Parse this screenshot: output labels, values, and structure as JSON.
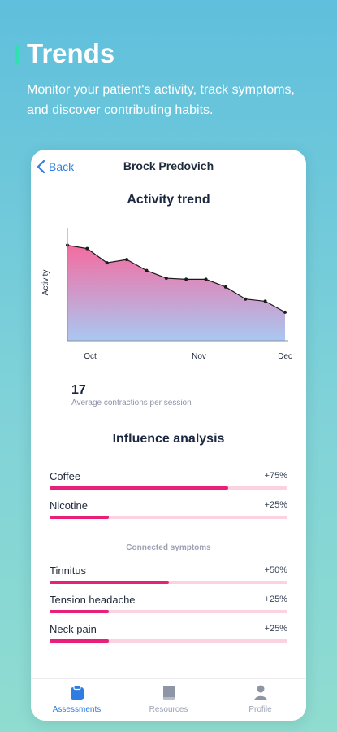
{
  "hero": {
    "title": "Trends",
    "subtitle": "Monitor your patient's activity, track symptoms, and discover contributing habits.",
    "accent_color": "#2fe0b0"
  },
  "header": {
    "back_label": "Back",
    "patient_name": "Brock Predovich"
  },
  "activity": {
    "title": "Activity trend",
    "stat_value": "17",
    "stat_label": "Average contractions per session"
  },
  "chart_data": {
    "type": "area",
    "title": "Activity trend",
    "ylabel": "Activity",
    "xlabel": "",
    "x_tick_labels": [
      "Oct",
      "Nov",
      "Dec"
    ],
    "ylim": [
      0,
      100
    ],
    "grid": false,
    "fill_gradient": [
      "#f56ba0",
      "#a9c8f2"
    ],
    "line_color": "#1b1b1b",
    "series": [
      {
        "values": [
          87,
          84,
          71,
          74,
          64,
          57,
          56,
          56,
          49,
          38,
          36,
          26
        ]
      }
    ]
  },
  "influence": {
    "title": "Influence analysis",
    "habits": [
      {
        "label": "Coffee",
        "value_text": "+75%",
        "fraction": 0.75
      },
      {
        "label": "Nicotine",
        "value_text": "+25%",
        "fraction": 0.25
      }
    ],
    "symptoms_heading": "Connected symptoms",
    "symptoms": [
      {
        "label": "Tinnitus",
        "value_text": "+50%",
        "fraction": 0.5
      },
      {
        "label": "Tension headache",
        "value_text": "+25%",
        "fraction": 0.25
      },
      {
        "label": "Neck pain",
        "value_text": "+25%",
        "fraction": 0.25
      }
    ],
    "bar_color": "#e8207a",
    "track_color": "#fbd2e0"
  },
  "tabs": [
    {
      "label": "Assessments",
      "icon": "clipboard-icon",
      "active": true
    },
    {
      "label": "Resources",
      "icon": "book-icon",
      "active": false
    },
    {
      "label": "Profile",
      "icon": "person-icon",
      "active": false
    }
  ],
  "colors": {
    "active_tab": "#2f7de1",
    "inactive_tab": "#9aa2b4",
    "link": "#2f7de1"
  }
}
